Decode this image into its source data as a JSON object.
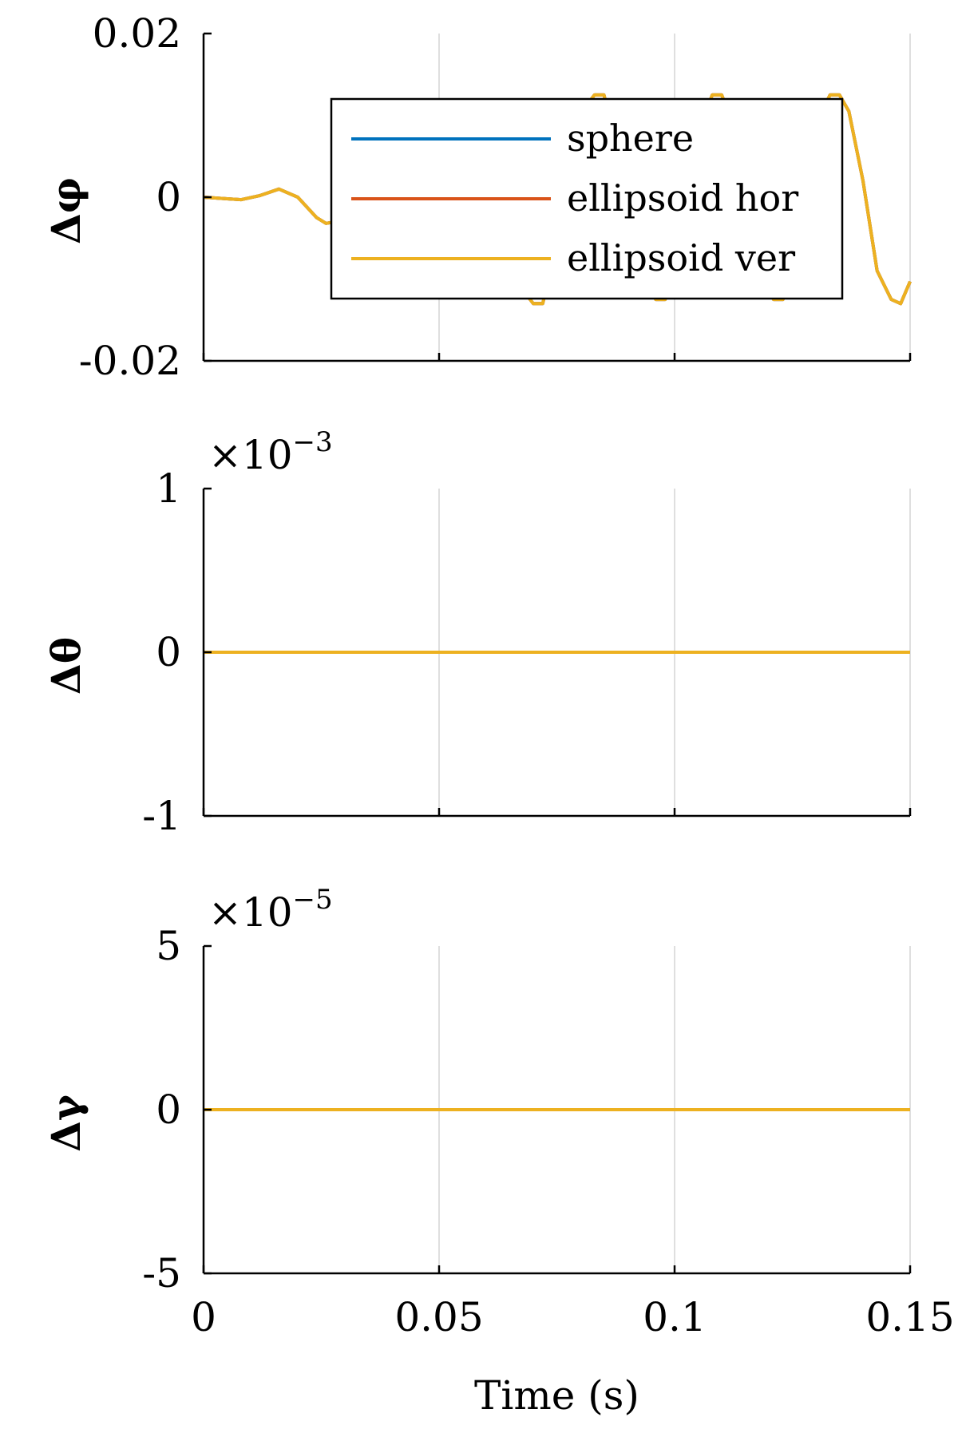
{
  "chart_data": [
    {
      "type": "line",
      "ylabel": "Δφ",
      "ylim": [
        -0.02,
        0.02
      ],
      "yticks": [
        "-0.02",
        "0",
        "0.02"
      ],
      "exponent": "",
      "xlim": [
        0,
        0.15
      ],
      "xticks": [
        "0",
        "0.05",
        "0.1",
        "0.15"
      ],
      "grid": true,
      "legend": {
        "position": "top-right",
        "entries": [
          "sphere",
          "ellipsoid hor",
          "ellipsoid ver"
        ]
      },
      "series": [
        {
          "name": "sphere",
          "color": "#0072BD",
          "x": [
            0,
            0.005,
            0.008,
            0.012,
            0.016,
            0.02,
            0.024,
            0.026,
            0.03,
            0.034,
            0.038,
            0.042,
            0.046,
            0.05,
            0.054,
            0.058,
            0.062,
            0.066,
            0.07,
            0.072,
            0.075,
            0.078,
            0.081,
            0.083,
            0.085,
            0.087,
            0.09,
            0.093,
            0.096,
            0.098,
            0.1,
            0.103,
            0.106,
            0.108,
            0.11,
            0.112,
            0.115,
            0.118,
            0.121,
            0.123,
            0.125,
            0.127,
            0.13,
            0.133,
            0.135,
            0.137,
            0.14,
            0.143,
            0.146,
            0.148,
            0.15
          ],
          "y": [
            0,
            -0.0002,
            -0.0003,
            0.0002,
            0.001,
            0,
            -0.0025,
            -0.0032,
            -0.0028,
            -0.001,
            0.0015,
            0.0035,
            0.0045,
            0.0035,
            0.0005,
            -0.003,
            -0.006,
            -0.01,
            -0.013,
            -0.013,
            -0.006,
            0.004,
            0.011,
            0.0125,
            0.0125,
            0.008,
            -0.001,
            -0.009,
            -0.0125,
            -0.0125,
            -0.0085,
            0.001,
            0.0095,
            0.0125,
            0.0125,
            0.0095,
            0.0005,
            -0.0085,
            -0.0125,
            -0.0125,
            -0.009,
            0.001,
            0.009,
            0.0125,
            0.0125,
            0.0105,
            0.002,
            -0.009,
            -0.0125,
            -0.013,
            -0.0103
          ]
        },
        {
          "name": "ellipsoid hor",
          "color": "#D95319",
          "x": [
            0,
            0.005,
            0.008,
            0.012,
            0.016,
            0.02,
            0.024,
            0.026,
            0.03,
            0.034,
            0.038,
            0.042,
            0.046,
            0.05,
            0.054,
            0.058,
            0.062,
            0.066,
            0.07,
            0.072,
            0.075,
            0.078,
            0.081,
            0.083,
            0.085,
            0.087,
            0.09,
            0.093,
            0.096,
            0.098,
            0.1,
            0.103,
            0.106,
            0.108,
            0.11,
            0.112,
            0.115,
            0.118,
            0.121,
            0.123,
            0.125,
            0.127,
            0.13,
            0.133,
            0.135,
            0.137,
            0.14,
            0.143,
            0.146,
            0.148,
            0.15
          ],
          "y": [
            0,
            -0.0002,
            -0.0003,
            0.0002,
            0.001,
            0,
            -0.0025,
            -0.0032,
            -0.0028,
            -0.001,
            0.0015,
            0.0035,
            0.0045,
            0.0035,
            0.0005,
            -0.003,
            -0.006,
            -0.01,
            -0.013,
            -0.013,
            -0.006,
            0.004,
            0.011,
            0.0125,
            0.0125,
            0.008,
            -0.001,
            -0.009,
            -0.0125,
            -0.0125,
            -0.0085,
            0.001,
            0.0095,
            0.0125,
            0.0125,
            0.0095,
            0.0005,
            -0.0085,
            -0.0125,
            -0.0125,
            -0.009,
            0.001,
            0.009,
            0.0125,
            0.0125,
            0.0105,
            0.002,
            -0.009,
            -0.0125,
            -0.013,
            -0.0103
          ]
        },
        {
          "name": "ellipsoid ver",
          "color": "#EDB120",
          "x": [
            0,
            0.005,
            0.008,
            0.012,
            0.016,
            0.02,
            0.024,
            0.026,
            0.03,
            0.034,
            0.038,
            0.042,
            0.046,
            0.05,
            0.054,
            0.058,
            0.062,
            0.066,
            0.07,
            0.072,
            0.075,
            0.078,
            0.081,
            0.083,
            0.085,
            0.087,
            0.09,
            0.093,
            0.096,
            0.098,
            0.1,
            0.103,
            0.106,
            0.108,
            0.11,
            0.112,
            0.115,
            0.118,
            0.121,
            0.123,
            0.125,
            0.127,
            0.13,
            0.133,
            0.135,
            0.137,
            0.14,
            0.143,
            0.146,
            0.148,
            0.15
          ],
          "y": [
            0,
            -0.0002,
            -0.0003,
            0.0002,
            0.001,
            0,
            -0.0025,
            -0.0032,
            -0.0028,
            -0.001,
            0.0015,
            0.0035,
            0.0045,
            0.0035,
            0.0005,
            -0.003,
            -0.006,
            -0.01,
            -0.013,
            -0.013,
            -0.006,
            0.004,
            0.011,
            0.0125,
            0.0125,
            0.008,
            -0.001,
            -0.009,
            -0.0125,
            -0.0125,
            -0.0085,
            0.001,
            0.0095,
            0.0125,
            0.0125,
            0.0095,
            0.0005,
            -0.0085,
            -0.0125,
            -0.0125,
            -0.009,
            0.001,
            0.009,
            0.0125,
            0.0125,
            0.0105,
            0.002,
            -0.009,
            -0.0125,
            -0.013,
            -0.0103
          ]
        }
      ]
    },
    {
      "type": "line",
      "ylabel": "Δθ",
      "ylim": [
        -0.001,
        0.001
      ],
      "yticks": [
        "-1",
        "0",
        "1"
      ],
      "exponent": "−3",
      "xlim": [
        0,
        0.15
      ],
      "xticks": [
        "0",
        "0.05",
        "0.1",
        "0.15"
      ],
      "grid": true,
      "series": [
        {
          "name": "sphere",
          "color": "#0072BD",
          "x": [
            0,
            0.15
          ],
          "y": [
            0,
            0
          ]
        },
        {
          "name": "ellipsoid hor",
          "color": "#D95319",
          "x": [
            0,
            0.15
          ],
          "y": [
            0,
            0
          ]
        },
        {
          "name": "ellipsoid ver",
          "color": "#EDB120",
          "x": [
            0,
            0.15
          ],
          "y": [
            0,
            0
          ]
        }
      ]
    },
    {
      "type": "line",
      "ylabel": "Δγ",
      "xlabel": "Time (s)",
      "ylim": [
        -5e-05,
        5e-05
      ],
      "yticks": [
        "-5",
        "0",
        "5"
      ],
      "exponent": "−5",
      "xlim": [
        0,
        0.15
      ],
      "xticks": [
        "0",
        "0.05",
        "0.1",
        "0.15"
      ],
      "grid": true,
      "series": [
        {
          "name": "sphere",
          "color": "#0072BD",
          "x": [
            0,
            0.15
          ],
          "y": [
            0,
            0
          ]
        },
        {
          "name": "ellipsoid hor",
          "color": "#D95319",
          "x": [
            0,
            0.15
          ],
          "y": [
            0,
            0
          ]
        },
        {
          "name": "ellipsoid ver",
          "color": "#EDB120",
          "x": [
            0,
            0.15
          ],
          "y": [
            0,
            0
          ]
        }
      ]
    }
  ]
}
